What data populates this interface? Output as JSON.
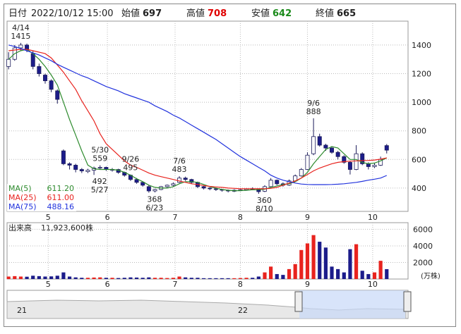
{
  "header": {
    "date_label": "日付",
    "datetime": "2022/10/12 15:00",
    "open_label": "始値",
    "open": 697,
    "high_label": "高値",
    "high": 708,
    "low_label": "安値",
    "low": 642,
    "close_label": "終値",
    "close": 665
  },
  "chart_data": {
    "type": "candlestick",
    "candles": [
      [
        1250,
        1350,
        1230,
        1300
      ],
      [
        1300,
        1400,
        1290,
        1380
      ],
      [
        1380,
        1415,
        1360,
        1400
      ],
      [
        1400,
        1410,
        1350,
        1370
      ],
      [
        1340,
        1360,
        1230,
        1250
      ],
      [
        1250,
        1270,
        1180,
        1200
      ],
      [
        1190,
        1200,
        1130,
        1150
      ],
      [
        1150,
        1160,
        1070,
        1090
      ],
      [
        1080,
        1090,
        990,
        1020
      ],
      [
        660,
        670,
        560,
        570
      ],
      [
        570,
        580,
        530,
        560
      ],
      [
        560,
        570,
        510,
        530
      ],
      [
        530,
        540,
        505,
        520
      ],
      [
        515,
        535,
        505,
        525
      ],
      [
        525,
        550,
        492,
        540
      ],
      [
        540,
        559,
        530,
        545
      ],
      [
        545,
        550,
        520,
        530
      ],
      [
        525,
        540,
        515,
        530
      ],
      [
        530,
        535,
        500,
        510
      ],
      [
        510,
        515,
        480,
        490
      ],
      [
        490,
        495,
        450,
        460
      ],
      [
        460,
        470,
        430,
        440
      ],
      [
        440,
        445,
        410,
        420
      ],
      [
        410,
        420,
        368,
        380
      ],
      [
        380,
        395,
        370,
        390
      ],
      [
        390,
        415,
        385,
        410
      ],
      [
        410,
        425,
        400,
        420
      ],
      [
        420,
        440,
        410,
        430
      ],
      [
        440,
        483,
        435,
        470
      ],
      [
        470,
        480,
        450,
        460
      ],
      [
        460,
        465,
        430,
        440
      ],
      [
        440,
        445,
        400,
        410
      ],
      [
        410,
        415,
        390,
        400
      ],
      [
        400,
        405,
        385,
        395
      ],
      [
        395,
        400,
        380,
        390
      ],
      [
        390,
        395,
        375,
        385
      ],
      [
        385,
        390,
        370,
        380
      ],
      [
        378,
        392,
        372,
        385
      ],
      [
        385,
        395,
        378,
        388
      ],
      [
        388,
        400,
        382,
        395
      ],
      [
        395,
        405,
        385,
        390
      ],
      [
        390,
        395,
        360,
        375
      ],
      [
        378,
        420,
        372,
        410
      ],
      [
        410,
        470,
        405,
        455
      ],
      [
        455,
        460,
        420,
        430
      ],
      [
        430,
        440,
        410,
        420
      ],
      [
        420,
        460,
        415,
        450
      ],
      [
        450,
        495,
        445,
        485
      ],
      [
        485,
        540,
        480,
        530
      ],
      [
        530,
        650,
        525,
        630
      ],
      [
        640,
        888,
        630,
        760
      ],
      [
        760,
        780,
        690,
        700
      ],
      [
        700,
        710,
        660,
        680
      ],
      [
        680,
        690,
        640,
        650
      ],
      [
        650,
        660,
        600,
        620
      ],
      [
        620,
        630,
        570,
        580
      ],
      [
        580,
        590,
        495,
        530
      ],
      [
        530,
        700,
        525,
        640
      ],
      [
        640,
        650,
        560,
        570
      ],
      [
        570,
        580,
        530,
        550
      ],
      [
        550,
        575,
        540,
        560
      ],
      [
        560,
        620,
        555,
        600
      ],
      [
        697,
        708,
        642,
        665
      ]
    ],
    "up_color": "#ffffff",
    "down_color": "#1c1c8a",
    "edge_color": "#1c1c5a",
    "series": [
      {
        "name": "MA(5)",
        "legend_value": "611.20",
        "color": "#2e8b2e",
        "values": [
          1300,
          1340,
          1360,
          1370,
          1340,
          1300,
          1250,
          1190,
          1120,
          1000,
          880,
          770,
          660,
          560,
          535,
          530,
          530,
          530,
          525,
          510,
          490,
          465,
          445,
          420,
          405,
          400,
          400,
          410,
          430,
          445,
          445,
          440,
          425,
          410,
          400,
          390,
          385,
          382,
          382,
          385,
          388,
          388,
          392,
          405,
          415,
          425,
          430,
          445,
          470,
          510,
          570,
          620,
          670,
          690,
          680,
          640,
          600,
          600,
          580,
          570,
          575,
          590,
          611
        ]
      },
      {
        "name": "MA(25)",
        "legend_value": "611.00",
        "color": "#e8231e",
        "values": [
          1360,
          1365,
          1370,
          1370,
          1360,
          1350,
          1340,
          1310,
          1260,
          1210,
          1150,
          1090,
          1010,
          940,
          870,
          780,
          710,
          670,
          630,
          590,
          560,
          545,
          525,
          505,
          490,
          480,
          470,
          460,
          450,
          440,
          430,
          425,
          418,
          412,
          408,
          405,
          400,
          398,
          395,
          395,
          395,
          395,
          395,
          398,
          405,
          420,
          435,
          450,
          470,
          495,
          520,
          540,
          555,
          570,
          580,
          585,
          588,
          590,
          592,
          593,
          596,
          602,
          611
        ]
      },
      {
        "name": "MA(75)",
        "legend_value": "488.16",
        "color": "#2233dd",
        "values": [
          1400,
          1390,
          1375,
          1360,
          1345,
          1330,
          1310,
          1290,
          1265,
          1245,
          1225,
          1205,
          1185,
          1170,
          1150,
          1130,
          1110,
          1095,
          1080,
          1060,
          1045,
          1030,
          1015,
          1000,
          975,
          955,
          935,
          910,
          890,
          865,
          840,
          815,
          790,
          765,
          740,
          710,
          680,
          650,
          620,
          595,
          570,
          545,
          520,
          490,
          470,
          455,
          445,
          435,
          428,
          425,
          424,
          424,
          424,
          425,
          427,
          430,
          435,
          440,
          447,
          455,
          462,
          470,
          488
        ]
      }
    ],
    "annotations": [
      {
        "date": "4/14",
        "value": 1415
      },
      {
        "date": "5/30",
        "value": 559
      },
      {
        "date": "5/27",
        "value": 492
      },
      {
        "date": "6/23",
        "value": 368
      },
      {
        "date": "7/6",
        "value": 483
      },
      {
        "date": "8/10",
        "value": 360
      },
      {
        "date": "9/6",
        "value": 888
      },
      {
        "date": "9/26",
        "value": 495
      }
    ],
    "xlim": [
      -0.25,
      65.5
    ],
    "xticks": [
      {
        "value": 6.5,
        "label": "5"
      },
      {
        "value": 16.2,
        "label": "6"
      },
      {
        "value": 27.3,
        "label": "7"
      },
      {
        "value": 38,
        "label": "8"
      },
      {
        "value": 49,
        "label": "9"
      },
      {
        "value": 59.7,
        "label": "10"
      }
    ],
    "ylim": [
      237,
      1567
    ],
    "yticks": [
      400,
      600,
      800,
      1000,
      1200,
      1400
    ],
    "grid": true,
    "volume": {
      "title": "出来高",
      "total": "11,923,600株",
      "unit": "(万株)",
      "up_color": "#e8231e",
      "down_color": "#1c1c8a",
      "values": [
        300,
        350,
        300,
        280,
        400,
        350,
        300,
        320,
        400,
        800,
        300,
        200,
        150,
        150,
        180,
        200,
        150,
        150,
        120,
        150,
        200,
        180,
        150,
        200,
        150,
        150,
        120,
        150,
        300,
        200,
        150,
        150,
        100,
        100,
        100,
        100,
        100,
        100,
        120,
        150,
        150,
        300,
        800,
        1500,
        600,
        500,
        1200,
        1800,
        3500,
        4300,
        5300,
        4500,
        3800,
        1500,
        1200,
        800,
        3600,
        4200,
        1000,
        600,
        800,
        2200,
        1192
      ],
      "ylim": [
        0,
        6800
      ],
      "yticks": [
        2000,
        4000,
        6000
      ]
    },
    "navigator": {
      "labels": [
        "21",
        "22"
      ]
    }
  }
}
